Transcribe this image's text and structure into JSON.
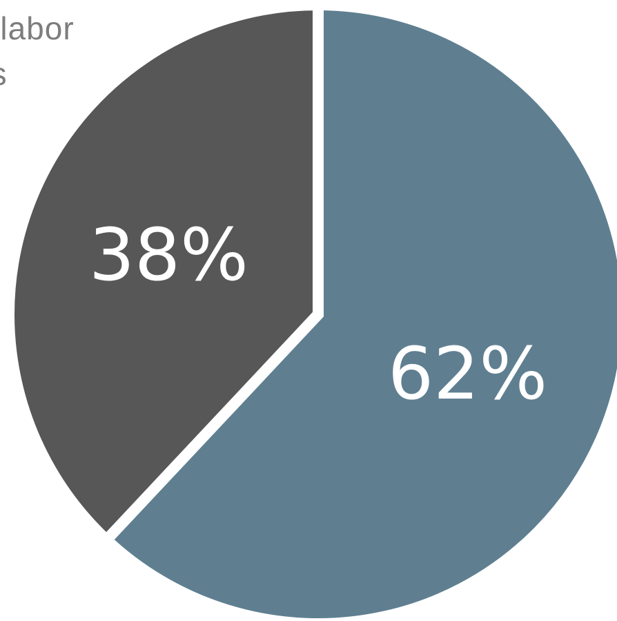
{
  "chart_data": {
    "type": "pie",
    "title": "",
    "annotation_lines": [
      "e labor",
      "as"
    ],
    "slices": [
      {
        "label": "",
        "value": 62,
        "value_label": "62%",
        "color": "#5f7f91"
      },
      {
        "label": "",
        "value": 38,
        "value_label": "38%",
        "color": "#575757"
      }
    ],
    "start": "12 o'clock",
    "direction": "clockwise",
    "separator_color": "#ffffff"
  }
}
